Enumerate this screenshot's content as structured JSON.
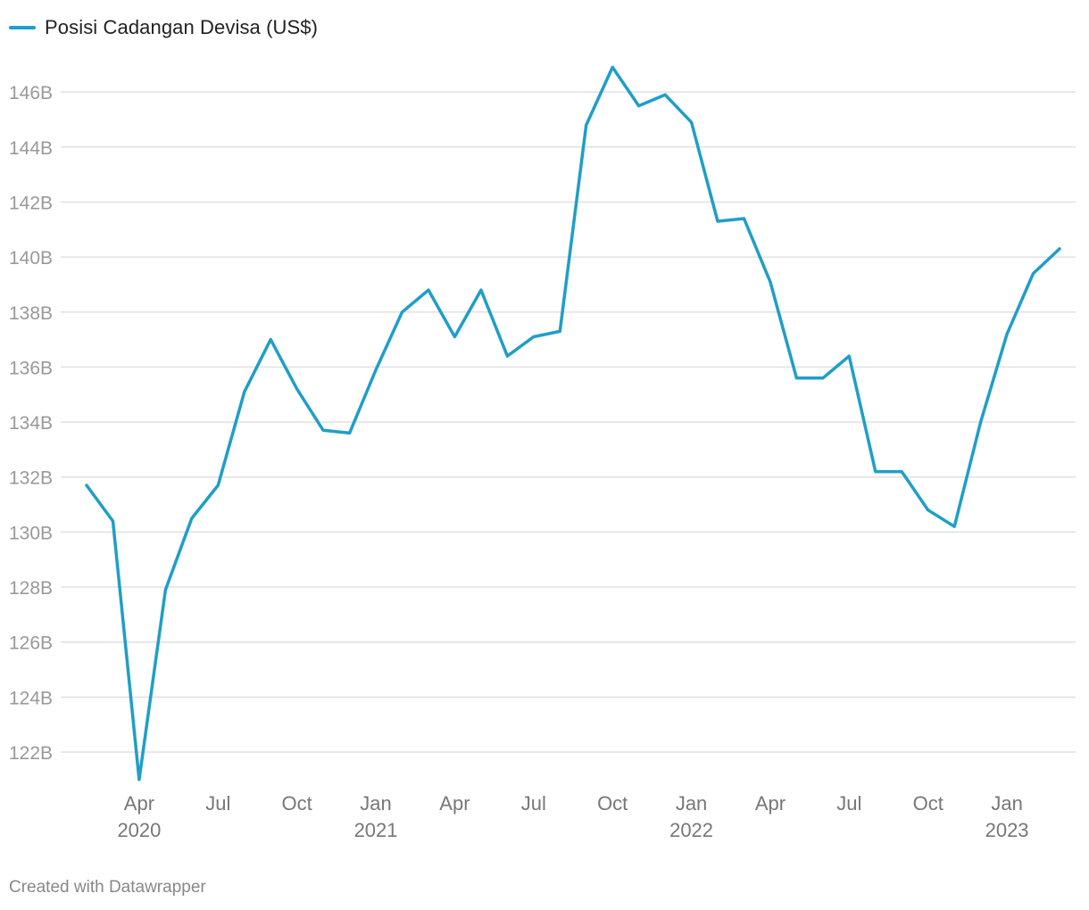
{
  "chart_data": {
    "type": "line",
    "legend": "top-left",
    "grid": true,
    "series": [
      {
        "name": "Posisi Cadangan Devisa (US$)",
        "color": "#1f9ec9",
        "x": [
          "2020-02",
          "2020-03",
          "2020-04",
          "2020-05",
          "2020-06",
          "2020-07",
          "2020-08",
          "2020-09",
          "2020-10",
          "2020-11",
          "2020-12",
          "2021-01",
          "2021-02",
          "2021-03",
          "2021-04",
          "2021-05",
          "2021-06",
          "2021-07",
          "2021-08",
          "2021-09",
          "2021-10",
          "2021-11",
          "2021-12",
          "2022-01",
          "2022-02",
          "2022-03",
          "2022-04",
          "2022-05",
          "2022-06",
          "2022-07",
          "2022-08",
          "2022-09",
          "2022-10",
          "2022-11",
          "2022-12",
          "2023-01",
          "2023-02",
          "2023-03"
        ],
        "values": [
          131.7,
          130.4,
          121.0,
          127.9,
          130.5,
          131.7,
          135.1,
          137.0,
          135.2,
          133.7,
          133.6,
          135.9,
          138.0,
          138.8,
          137.1,
          138.8,
          136.4,
          137.1,
          137.3,
          144.8,
          146.9,
          145.5,
          145.9,
          144.9,
          141.3,
          141.4,
          139.1,
          135.6,
          135.6,
          136.4,
          132.2,
          132.2,
          130.8,
          130.2,
          134.0,
          137.2,
          139.4,
          140.3
        ]
      }
    ],
    "ylim": [
      120.8,
      147.4
    ],
    "yticks": [
      122,
      124,
      126,
      128,
      130,
      132,
      134,
      136,
      138,
      140,
      142,
      144,
      146
    ],
    "ytick_labels": [
      "122B",
      "124B",
      "126B",
      "128B",
      "130B",
      "132B",
      "134B",
      "136B",
      "138B",
      "140B",
      "142B",
      "144B",
      "146B"
    ],
    "xlim": [
      "2020-02",
      "2023-03"
    ],
    "xticks": [
      {
        "x": "2020-04",
        "label": "Apr",
        "year": "2020"
      },
      {
        "x": "2020-07",
        "label": "Jul",
        "year": ""
      },
      {
        "x": "2020-10",
        "label": "Oct",
        "year": ""
      },
      {
        "x": "2021-01",
        "label": "Jan",
        "year": "2021"
      },
      {
        "x": "2021-04",
        "label": "Apr",
        "year": ""
      },
      {
        "x": "2021-07",
        "label": "Jul",
        "year": ""
      },
      {
        "x": "2021-10",
        "label": "Oct",
        "year": ""
      },
      {
        "x": "2022-01",
        "label": "Jan",
        "year": "2022"
      },
      {
        "x": "2022-04",
        "label": "Apr",
        "year": ""
      },
      {
        "x": "2022-07",
        "label": "Jul",
        "year": ""
      },
      {
        "x": "2022-10",
        "label": "Oct",
        "year": ""
      },
      {
        "x": "2023-01",
        "label": "Jan",
        "year": "2023"
      }
    ],
    "xlabel": "",
    "ylabel": ""
  },
  "footer": {
    "credit": "Created with Datawrapper"
  }
}
